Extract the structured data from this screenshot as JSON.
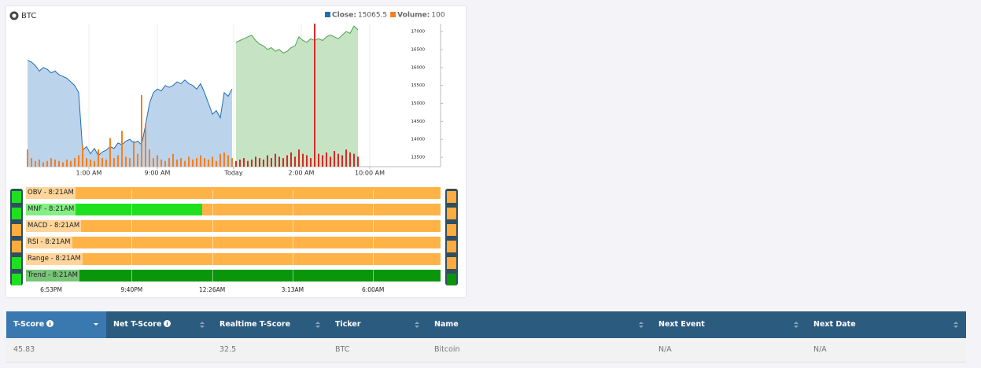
{
  "chart_data": {
    "type": "area",
    "title": "BTC",
    "series": [
      {
        "name": "Close:",
        "current": 15065.5,
        "color": "#1f6fb4",
        "area_color": "#bcd3ec",
        "today_color": "#4ea04e",
        "today_area_color": "#c6e4c3",
        "values": [
          16200,
          16150,
          16050,
          15900,
          16000,
          15950,
          15850,
          15900,
          15800,
          15750,
          15700,
          15600,
          15500,
          15300,
          13700,
          13800,
          13600,
          13750,
          13550,
          13650,
          13700,
          13800,
          13750,
          13900,
          13850,
          13950,
          14000,
          13900,
          13950,
          13850,
          14400,
          15000,
          15300,
          15400,
          15350,
          15500,
          15450,
          15500,
          15600,
          15550,
          15650,
          15550,
          15500,
          15400,
          15550,
          15300,
          15000,
          14700,
          14800,
          14600,
          15300,
          15200,
          15400,
          16700,
          16750,
          16800,
          16850,
          16900,
          16750,
          16650,
          16600,
          16500,
          16550,
          16450,
          16500,
          16400,
          16450,
          16550,
          16600,
          16850,
          16750,
          16700,
          16800,
          16750,
          16800,
          16750,
          16850,
          16900,
          16850,
          16800,
          16900,
          17000,
          16950,
          17150,
          17050
        ]
      },
      {
        "name": "Volume:",
        "current": 100,
        "color": "#f47f20",
        "today_color": "#d42a2a",
        "axis": "y2",
        "values": [
          120,
          60,
          40,
          50,
          30,
          40,
          60,
          50,
          40,
          30,
          50,
          40,
          60,
          80,
          150,
          60,
          50,
          40,
          120,
          60,
          50,
          200,
          60,
          80,
          250,
          70,
          60,
          180,
          90,
          500,
          300,
          120,
          60,
          80,
          50,
          40,
          60,
          90,
          50,
          60,
          40,
          70,
          50,
          60,
          80,
          60,
          50,
          70,
          40,
          90,
          100,
          80,
          60,
          40,
          50,
          60,
          40,
          50,
          70,
          60,
          50,
          80,
          60,
          90,
          70,
          60,
          80,
          100,
          70,
          120,
          90,
          80,
          60,
          1000,
          90,
          80,
          100,
          70,
          110,
          90,
          80,
          120,
          100,
          90,
          70
        ]
      }
    ],
    "xlim": [
      0,
      105
    ],
    "xticks": [
      {
        "value": 15.6,
        "label": "1:00 AM"
      },
      {
        "value": 33,
        "label": "9:00 AM"
      },
      {
        "value": 52.4,
        "label": "Today"
      },
      {
        "value": 69.6,
        "label": "2:00 AM"
      },
      {
        "value": 87,
        "label": "10:00 AM"
      }
    ],
    "ylim": [
      13240,
      17220
    ],
    "yticks": [
      13500,
      14000,
      14500,
      15000,
      15500,
      16000,
      16500,
      17000
    ],
    "y2lim": [
      0,
      1000
    ],
    "grid": true
  },
  "indicators": {
    "rows": [
      {
        "label": "OBV - 8:21AM",
        "left_color": "#1fe01f",
        "right_color": "#ffab3d",
        "segments": [
          {
            "color": "#ffb347",
            "value": 100
          }
        ]
      },
      {
        "label": "MNF - 8:21AM",
        "left_color": "#1fe01f",
        "right_color": "#ffab3d",
        "segments": [
          {
            "color": "#1fe01f",
            "value": 42.5
          },
          {
            "color": "#ffb347",
            "value": 57.5
          }
        ]
      },
      {
        "label": "MACD - 8:21AM",
        "left_color": "#ffab3d",
        "right_color": "#ffab3d",
        "segments": [
          {
            "color": "#ffb347",
            "value": 100
          }
        ]
      },
      {
        "label": "RSI - 8:21AM",
        "left_color": "#ffab3d",
        "right_color": "#ffab3d",
        "segments": [
          {
            "color": "#ffb347",
            "value": 100
          }
        ]
      },
      {
        "label": "Range - 8:21AM",
        "left_color": "#1fe01f",
        "right_color": "#ffab3d",
        "segments": [
          {
            "color": "#ffb347",
            "value": 100
          }
        ]
      },
      {
        "label": "Trend - 8:21AM",
        "left_color": "#1fe01f",
        "right_color": "#0a960a",
        "segments": [
          {
            "color": "#0a960a",
            "value": 100
          }
        ]
      }
    ],
    "timeline": [
      "6:53PM",
      "9:40PM",
      "12:26AM",
      "3:13AM",
      "6:00AM"
    ]
  },
  "table": {
    "headers": [
      "T-Score",
      "Net T-Score",
      "Realtime T-Score",
      "Ticker",
      "Name",
      "Next Event",
      "Next Date"
    ],
    "rows": [
      [
        "45.83",
        null,
        "32.5",
        "BTC",
        "Bitcoin",
        "N/A",
        "N/A"
      ]
    ]
  }
}
